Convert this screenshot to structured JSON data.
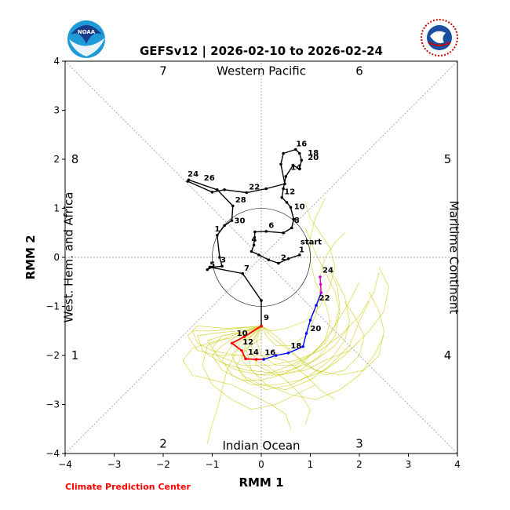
{
  "chart_data": {
    "type": "line",
    "title": "GEFSv12 | 2026-02-10 to 2026-02-24",
    "xlabel": "RMM 1",
    "ylabel": "RMM 2",
    "xlim": [
      -4,
      4
    ],
    "ylim": [
      -4,
      4
    ],
    "xticks": [
      "-4",
      "-3",
      "-2",
      "-1",
      "0",
      "1",
      "2",
      "3",
      "4"
    ],
    "yticks": [
      "-4",
      "-3",
      "-2",
      "-1",
      "0",
      "1",
      "2",
      "3",
      "4"
    ],
    "regions": {
      "top": "Western Pacific",
      "bottom": "Indian Ocean",
      "left": "West. Hem. and Africa",
      "right": "Maritime Continent"
    },
    "phases": [
      {
        "label": "1",
        "x": -3.8,
        "y": -2.0
      },
      {
        "label": "2",
        "x": -2.0,
        "y": -3.8
      },
      {
        "label": "3",
        "x": 2.0,
        "y": -3.8
      },
      {
        "label": "4",
        "x": 3.8,
        "y": -2.0
      },
      {
        "label": "5",
        "x": 3.8,
        "y": 2.0
      },
      {
        "label": "6",
        "x": 2.0,
        "y": 3.8
      },
      {
        "label": "7",
        "x": -2.0,
        "y": 3.8
      },
      {
        "label": "8",
        "x": -3.8,
        "y": 2.0
      }
    ],
    "start_label": "start",
    "colors": {
      "observed": "#000000",
      "forecast1": "#ff0000",
      "forecast2": "#0000ff",
      "forecast3": "#cc00cc",
      "ensemble": "#c8c800",
      "grid": "#888888"
    },
    "observed": [
      {
        "x": 0.78,
        "y": 0.05
      },
      {
        "x": 0.55,
        "y": -0.03
      },
      {
        "x": 0.35,
        "y": -0.12
      },
      {
        "x": 0.15,
        "y": -0.05
      },
      {
        "x": -0.05,
        "y": 0.05
      },
      {
        "x": -0.2,
        "y": 0.12
      },
      {
        "x": -0.15,
        "y": 0.25
      },
      {
        "x": -0.13,
        "y": 0.52
      },
      {
        "x": 0.1,
        "y": 0.53
      },
      {
        "x": 0.45,
        "y": 0.5
      },
      {
        "x": 0.62,
        "y": 0.6
      },
      {
        "x": 0.66,
        "y": 0.78
      },
      {
        "x": 0.6,
        "y": 1.02
      },
      {
        "x": 0.52,
        "y": 1.12
      },
      {
        "x": 0.42,
        "y": 1.22
      },
      {
        "x": 0.45,
        "y": 1.4
      },
      {
        "x": 0.5,
        "y": 1.65
      },
      {
        "x": 0.65,
        "y": 1.88
      },
      {
        "x": 0.78,
        "y": 1.8
      },
      {
        "x": 0.82,
        "y": 1.98
      },
      {
        "x": 0.78,
        "y": 2.12
      },
      {
        "x": 0.7,
        "y": 2.2
      },
      {
        "x": 0.45,
        "y": 2.12
      },
      {
        "x": 0.4,
        "y": 1.9
      },
      {
        "x": 0.48,
        "y": 1.5
      },
      {
        "x": 0.1,
        "y": 1.4
      },
      {
        "x": -0.3,
        "y": 1.32
      },
      {
        "x": -0.75,
        "y": 1.38
      },
      {
        "x": -1.0,
        "y": 1.33
      },
      {
        "x": -1.5,
        "y": 1.55
      },
      {
        "x": -1.48,
        "y": 1.58
      },
      {
        "x": -0.9,
        "y": 1.38
      },
      {
        "x": -0.58,
        "y": 1.05
      },
      {
        "x": -0.6,
        "y": 0.75
      },
      {
        "x": -0.75,
        "y": 0.65
      },
      {
        "x": -0.9,
        "y": 0.45
      },
      {
        "x": -0.85,
        "y": 0.0
      },
      {
        "x": -0.8,
        "y": -0.18
      },
      {
        "x": -1.0,
        "y": -0.2
      },
      {
        "x": -1.1,
        "y": -0.25
      },
      {
        "x": -1.05,
        "y": -0.2
      },
      {
        "x": -0.38,
        "y": -0.33
      },
      {
        "x": 0.0,
        "y": -0.88
      },
      {
        "x": 0.0,
        "y": -1.4
      }
    ],
    "observed_labels": [
      {
        "label": "start",
        "x": 0.75,
        "y": 0.22
      },
      {
        "label": "1",
        "x": 0.72,
        "y": 0.06
      },
      {
        "label": "2",
        "x": 0.35,
        "y": -0.1
      },
      {
        "label": "4",
        "x": -0.25,
        "y": 0.27
      },
      {
        "label": "6",
        "x": 0.1,
        "y": 0.55
      },
      {
        "label": "8",
        "x": 0.62,
        "y": 0.66
      },
      {
        "label": "10",
        "x": 0.62,
        "y": 0.94
      },
      {
        "label": "12",
        "x": 0.42,
        "y": 1.24
      },
      {
        "label": "14",
        "x": 0.55,
        "y": 1.74
      },
      {
        "label": "16",
        "x": 0.66,
        "y": 2.22
      },
      {
        "label": "18",
        "x": 0.9,
        "y": 2.03
      },
      {
        "label": "20",
        "x": 0.9,
        "y": 1.94
      },
      {
        "label": "22",
        "x": -0.3,
        "y": 1.34
      },
      {
        "label": "24",
        "x": -1.55,
        "y": 1.6
      },
      {
        "label": "26",
        "x": -1.22,
        "y": 1.52
      },
      {
        "label": "28",
        "x": -0.58,
        "y": 1.07
      },
      {
        "label": "30",
        "x": -0.6,
        "y": 0.65
      },
      {
        "label": "1",
        "x": -1.0,
        "y": 0.48
      },
      {
        "label": "3",
        "x": -0.88,
        "y": -0.15
      },
      {
        "label": "5",
        "x": -1.1,
        "y": -0.25
      },
      {
        "label": "7",
        "x": -0.4,
        "y": -0.32
      },
      {
        "label": "9",
        "x": 0.0,
        "y": -1.33
      }
    ],
    "forecast_red": [
      {
        "x": 0.0,
        "y": -1.4
      },
      {
        "x": -0.35,
        "y": -1.62
      },
      {
        "x": -0.6,
        "y": -1.75
      },
      {
        "x": -0.4,
        "y": -1.9
      },
      {
        "x": -0.32,
        "y": -2.07
      },
      {
        "x": -0.1,
        "y": -2.08
      },
      {
        "x": 0.05,
        "y": -2.08
      }
    ],
    "forecast_red_labels": [
      {
        "label": "10",
        "x": -0.55,
        "y": -1.65
      },
      {
        "label": "12",
        "x": -0.43,
        "y": -1.82
      },
      {
        "label": "14",
        "x": -0.32,
        "y": -2.03
      }
    ],
    "forecast_blue": [
      {
        "x": 0.05,
        "y": -2.08
      },
      {
        "x": 0.3,
        "y": -2.0
      },
      {
        "x": 0.55,
        "y": -1.95
      },
      {
        "x": 0.85,
        "y": -1.82
      },
      {
        "x": 0.92,
        "y": -1.55
      },
      {
        "x": 1.0,
        "y": -1.28
      },
      {
        "x": 1.12,
        "y": -0.98
      },
      {
        "x": 1.22,
        "y": -0.72
      }
    ],
    "forecast_blue_labels": [
      {
        "label": "16",
        "x": 0.02,
        "y": -2.04
      },
      {
        "label": "18",
        "x": 0.55,
        "y": -1.9
      },
      {
        "label": "20",
        "x": 0.95,
        "y": -1.55
      },
      {
        "label": "22",
        "x": 1.13,
        "y": -0.93
      }
    ],
    "forecast_magenta": [
      {
        "x": 1.22,
        "y": -0.72
      },
      {
        "x": 1.21,
        "y": -0.55
      },
      {
        "x": 1.2,
        "y": -0.4
      }
    ],
    "forecast_magenta_labels": [
      {
        "label": "24",
        "x": 1.2,
        "y": -0.36
      }
    ],
    "ensemble": [
      [
        [
          0,
          -1.4
        ],
        [
          -0.5,
          -1.5
        ],
        [
          -1.0,
          -1.55
        ],
        [
          -1.3,
          -1.6
        ],
        [
          -1.2,
          -1.9
        ],
        [
          -0.9,
          -2.1
        ],
        [
          -0.5,
          -2.3
        ],
        [
          0.0,
          -2.4
        ],
        [
          0.6,
          -2.3
        ],
        [
          1.1,
          -2.1
        ],
        [
          1.5,
          -1.8
        ],
        [
          1.8,
          -1.4
        ]
      ],
      [
        [
          0,
          -1.4
        ],
        [
          -0.4,
          -1.7
        ],
        [
          -0.6,
          -2.0
        ],
        [
          -0.4,
          -2.4
        ],
        [
          0.0,
          -2.6
        ],
        [
          0.5,
          -2.7
        ],
        [
          1.0,
          -2.5
        ],
        [
          1.4,
          -2.2
        ],
        [
          1.8,
          -1.8
        ],
        [
          2.0,
          -1.3
        ],
        [
          2.2,
          -0.9
        ]
      ],
      [
        [
          0,
          -1.4
        ],
        [
          -0.2,
          -1.8
        ],
        [
          -0.1,
          -2.2
        ],
        [
          0.3,
          -2.4
        ],
        [
          0.8,
          -2.3
        ],
        [
          1.2,
          -2.0
        ],
        [
          1.5,
          -1.6
        ],
        [
          1.6,
          -1.1
        ],
        [
          1.5,
          -0.7
        ],
        [
          1.3,
          -0.3
        ],
        [
          1.1,
          0.1
        ],
        [
          0.9,
          0.6
        ]
      ],
      [
        [
          0,
          -1.4
        ],
        [
          -0.6,
          -1.6
        ],
        [
          -1.1,
          -1.8
        ],
        [
          -1.2,
          -2.2
        ],
        [
          -1.0,
          -2.6
        ],
        [
          -0.6,
          -2.9
        ],
        [
          -0.2,
          -3.1
        ],
        [
          0.3,
          -3.0
        ],
        [
          0.7,
          -2.8
        ],
        [
          1.1,
          -2.6
        ]
      ],
      [
        [
          0,
          -1.4
        ],
        [
          -0.3,
          -1.5
        ],
        [
          -0.8,
          -1.6
        ],
        [
          -1.1,
          -1.7
        ],
        [
          -0.9,
          -2.0
        ],
        [
          -0.4,
          -2.2
        ],
        [
          0.2,
          -2.2
        ],
        [
          0.7,
          -2.1
        ],
        [
          1.2,
          -1.9
        ],
        [
          1.6,
          -1.6
        ],
        [
          2.0,
          -1.2
        ],
        [
          2.3,
          -0.7
        ],
        [
          2.4,
          -0.3
        ]
      ],
      [
        [
          0,
          -1.4
        ],
        [
          -0.2,
          -1.6
        ],
        [
          -0.5,
          -1.9
        ],
        [
          -0.7,
          -2.3
        ],
        [
          -0.8,
          -2.7
        ],
        [
          -0.9,
          -3.1
        ],
        [
          -1.0,
          -3.4
        ],
        [
          -1.1,
          -3.8
        ]
      ],
      [
        [
          0,
          -1.4
        ],
        [
          0.3,
          -1.6
        ],
        [
          0.6,
          -1.9
        ],
        [
          0.9,
          -2.2
        ],
        [
          1.3,
          -2.4
        ],
        [
          1.7,
          -2.3
        ],
        [
          2.0,
          -2.0
        ],
        [
          2.1,
          -1.6
        ],
        [
          1.9,
          -1.2
        ],
        [
          1.7,
          -0.9
        ]
      ],
      [
        [
          0,
          -1.4
        ],
        [
          -0.5,
          -1.45
        ],
        [
          -1.0,
          -1.5
        ],
        [
          -1.4,
          -1.5
        ],
        [
          -1.3,
          -1.75
        ],
        [
          -1.0,
          -1.9
        ],
        [
          -0.5,
          -2.0
        ],
        [
          0.0,
          -2.0
        ],
        [
          0.5,
          -2.1
        ],
        [
          0.9,
          -2.4
        ],
        [
          1.2,
          -2.7
        ],
        [
          1.5,
          -2.9
        ]
      ],
      [
        [
          0,
          -1.4
        ],
        [
          0.2,
          -1.5
        ],
        [
          0.5,
          -1.45
        ],
        [
          0.9,
          -1.3
        ],
        [
          1.2,
          -1.0
        ],
        [
          1.4,
          -0.6
        ],
        [
          1.5,
          -0.2
        ],
        [
          1.4,
          0.2
        ],
        [
          1.2,
          0.5
        ],
        [
          1.0,
          0.8
        ],
        [
          0.9,
          1.1
        ]
      ],
      [
        [
          0,
          -1.4
        ],
        [
          -0.3,
          -1.9
        ],
        [
          -0.2,
          -2.3
        ],
        [
          0.1,
          -2.6
        ],
        [
          0.6,
          -2.8
        ],
        [
          1.1,
          -2.9
        ],
        [
          1.6,
          -2.7
        ],
        [
          2.0,
          -2.4
        ],
        [
          2.3,
          -2.0
        ],
        [
          2.5,
          -1.6
        ]
      ],
      [
        [
          0,
          -1.4
        ],
        [
          -0.4,
          -1.55
        ],
        [
          -0.8,
          -1.8
        ],
        [
          -1.0,
          -2.0
        ],
        [
          -0.8,
          -2.3
        ],
        [
          -0.4,
          -2.5
        ],
        [
          0.0,
          -2.5
        ],
        [
          0.4,
          -2.4
        ],
        [
          0.8,
          -2.2
        ],
        [
          1.2,
          -1.8
        ],
        [
          1.5,
          -1.4
        ],
        [
          1.8,
          -0.9
        ],
        [
          2.0,
          -0.5
        ]
      ],
      [
        [
          0,
          -1.4
        ],
        [
          -0.1,
          -1.7
        ],
        [
          0.0,
          -2.0
        ],
        [
          0.3,
          -2.2
        ],
        [
          0.7,
          -2.2
        ],
        [
          1.0,
          -2.0
        ],
        [
          1.3,
          -1.7
        ],
        [
          1.4,
          -1.3
        ],
        [
          1.3,
          -0.9
        ],
        [
          1.1,
          -0.5
        ],
        [
          1.0,
          -0.1
        ],
        [
          1.0,
          0.4
        ],
        [
          1.1,
          0.8
        ],
        [
          1.3,
          1.2
        ]
      ],
      [
        [
          0,
          -1.4
        ],
        [
          -0.7,
          -1.45
        ],
        [
          -1.3,
          -1.4
        ],
        [
          -1.5,
          -1.6
        ],
        [
          -1.3,
          -1.9
        ],
        [
          -0.9,
          -2.0
        ],
        [
          -0.4,
          -2.0
        ],
        [
          0.1,
          -2.2
        ],
        [
          0.5,
          -2.5
        ],
        [
          0.8,
          -2.8
        ],
        [
          1.0,
          -3.1
        ],
        [
          0.9,
          -3.4
        ]
      ],
      [
        [
          0,
          -1.4
        ],
        [
          0.3,
          -1.7
        ],
        [
          0.7,
          -2.0
        ],
        [
          1.1,
          -2.3
        ],
        [
          1.6,
          -2.4
        ],
        [
          2.1,
          -2.3
        ],
        [
          2.4,
          -2.0
        ],
        [
          2.5,
          -1.5
        ],
        [
          2.4,
          -1.1
        ],
        [
          2.2,
          -0.7
        ]
      ],
      [
        [
          0,
          -1.4
        ],
        [
          -0.2,
          -1.6
        ],
        [
          -0.6,
          -1.8
        ],
        [
          -0.8,
          -2.1
        ],
        [
          -0.6,
          -2.4
        ],
        [
          -0.2,
          -2.6
        ],
        [
          0.3,
          -2.6
        ],
        [
          0.8,
          -2.5
        ],
        [
          1.3,
          -2.3
        ],
        [
          1.7,
          -2.0
        ],
        [
          2.0,
          -1.7
        ]
      ],
      [
        [
          0,
          -1.4
        ],
        [
          0.1,
          -1.6
        ],
        [
          0.3,
          -1.8
        ],
        [
          0.6,
          -1.8
        ],
        [
          0.9,
          -1.6
        ],
        [
          1.1,
          -1.2
        ],
        [
          1.2,
          -0.8
        ],
        [
          1.2,
          -0.4
        ],
        [
          1.3,
          0.0
        ],
        [
          1.5,
          0.3
        ],
        [
          1.7,
          0.5
        ]
      ],
      [
        [
          0,
          -1.4
        ],
        [
          -0.4,
          -1.6
        ],
        [
          -0.9,
          -1.7
        ],
        [
          -1.4,
          -1.85
        ],
        [
          -1.6,
          -2.1
        ],
        [
          -1.4,
          -2.4
        ],
        [
          -1.0,
          -2.5
        ],
        [
          -0.6,
          -2.6
        ],
        [
          -0.2,
          -2.8
        ],
        [
          0.2,
          -3.0
        ],
        [
          0.5,
          -3.2
        ],
        [
          0.6,
          -3.5
        ]
      ],
      [
        [
          0,
          -1.4
        ],
        [
          -0.3,
          -1.7
        ],
        [
          -0.4,
          -2.1
        ],
        [
          -0.1,
          -2.4
        ],
        [
          0.4,
          -2.4
        ],
        [
          0.9,
          -2.3
        ],
        [
          1.3,
          -2.1
        ],
        [
          1.8,
          -1.9
        ],
        [
          2.2,
          -1.5
        ],
        [
          2.5,
          -1.1
        ],
        [
          2.6,
          -0.6
        ],
        [
          2.4,
          -0.2
        ]
      ],
      [
        [
          0,
          -1.4
        ],
        [
          0.0,
          -1.65
        ],
        [
          -0.3,
          -1.85
        ],
        [
          -0.5,
          -2.2
        ],
        [
          -0.3,
          -2.5
        ],
        [
          0.1,
          -2.7
        ],
        [
          0.6,
          -2.6
        ],
        [
          1.0,
          -2.4
        ],
        [
          1.4,
          -2.1
        ],
        [
          1.7,
          -1.7
        ],
        [
          1.8,
          -1.3
        ],
        [
          1.7,
          -0.8
        ],
        [
          1.5,
          -0.4
        ]
      ],
      [
        [
          0,
          -1.4
        ],
        [
          -0.5,
          -1.55
        ],
        [
          -0.8,
          -1.6
        ],
        [
          -1.0,
          -1.85
        ],
        [
          -0.8,
          -2.15
        ],
        [
          -0.3,
          -2.3
        ],
        [
          0.2,
          -2.35
        ],
        [
          0.6,
          -2.2
        ],
        [
          1.0,
          -2.0
        ],
        [
          1.3,
          -1.75
        ],
        [
          1.5,
          -1.4
        ],
        [
          1.6,
          -1.0
        ],
        [
          1.55,
          -0.6
        ],
        [
          1.4,
          -0.25
        ]
      ]
    ]
  }
}
